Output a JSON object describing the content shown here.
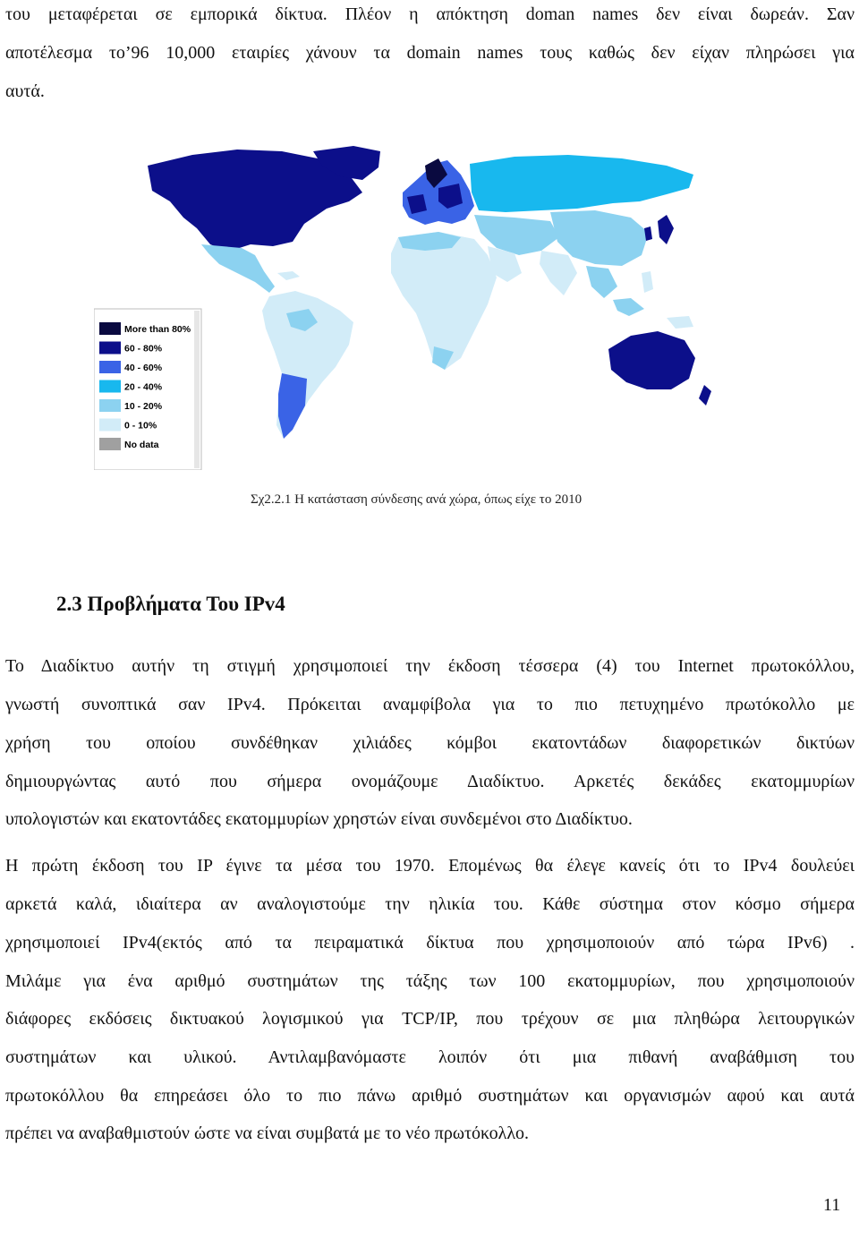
{
  "intro": {
    "lines": [
      "του μεταφέρεται σε εμπορικά δίκτυα. Πλέον η απόκτηση doman names δεν είναι δωρεάν. Σαν",
      "αποτέλεσμα το’96 10,000 εταιρίες χάνουν τα domain names τους καθώς δεν είχαν πληρώσει για",
      "αυτά."
    ]
  },
  "figure": {
    "legend": [
      {
        "label": "More than 80%",
        "color": "#0a0a40"
      },
      {
        "label": "60 - 80%",
        "color": "#0c0f8a"
      },
      {
        "label": "40 - 60%",
        "color": "#3a63e6"
      },
      {
        "label": "20 - 40%",
        "color": "#18b8ee"
      },
      {
        "label": "10 - 20%",
        "color": "#8cd2f0"
      },
      {
        "label": "0 - 10%",
        "color": "#d2ecf8"
      },
      {
        "label": "No data",
        "color": "#a0a0a0"
      }
    ],
    "caption": "Σχ2.2.1 Η κατάσταση σύνδεσης ανά χώρα, όπως είχε το 2010"
  },
  "section": {
    "heading": "2.3 Προβλήματα Του IPv4",
    "lines": [
      "Το Διαδίκτυο αυτήν τη στιγμή χρησιμοποιεί την έκδοση τέσσερα (4) του Internet πρωτοκόλλου,",
      "γνωστή συνοπτικά σαν IPv4. Πρόκειται αναμφίβολα για το πιο πετυχημένο πρωτόκολλο με",
      "χρήση του οποίου συνδέθηκαν χιλιάδες κόμβοι εκατοντάδων διαφορετικών δικτύων",
      "δημιουργώντας αυτό που σήμερα ονομάζουμε Διαδίκτυο. Αρκετές δεκάδες εκατομμυρίων",
      "υπολογιστών και εκατοντάδες εκατομμυρίων χρηστών είναι συνδεμένοι στο Διαδίκτυο.",
      "Η πρώτη έκδοση του IP έγινε τα μέσα του 1970. Επομένως θα έλεγε κανείς ότι το IPv4 δουλεύει",
      "αρκετά καλά, ιδιαίτερα αν αναλογιστούμε την ηλικία του. Κάθε σύστημα στον κόσμο σήμερα",
      "χρησιμοποιεί IPv4(εκτός από τα πειραματικά δίκτυα που χρησιμοποιούν από τώρα IPv6) .",
      "Μιλάμε για ένα αριθμό συστημάτων της τάξης των 100 εκατομμυρίων, που χρησιμοποιούν",
      "διάφορες εκδόσεις δικτυακού λογισμικού για TCP/IP, που τρέχουν σε μια πληθώρα λειτουργικών",
      "συστημάτων και υλικού. Αντιλαμβανόμαστε λοιπόν ότι μια πιθανή αναβάθμιση του",
      "πρωτοκόλλου θα επηρεάσει όλο το πιο πάνω αριθμό συστημάτων και οργανισμών αφού και αυτά",
      "πρέπει να αναβαθμιστούν ώστε να είναι συμβατά με το νέο πρωτόκολλο."
    ]
  },
  "page_number": "11"
}
